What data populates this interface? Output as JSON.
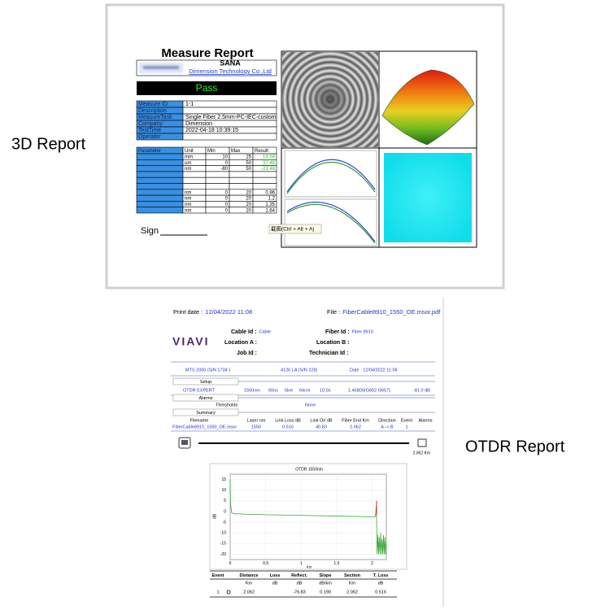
{
  "labels": {
    "report_3d": "3D Report",
    "report_otdr": "OTDR Report"
  },
  "report_3d": {
    "title": "Measure Report",
    "company_short": "SANA",
    "company": "Dimension Technology Co.,Ltd",
    "status": "Pass",
    "info": [
      {
        "label": "Measure ID",
        "value": "1-1"
      },
      {
        "label": "Description"
      },
      {
        "label": "MeasureTask",
        "value": "Single Fiber 2.5mm-PC-IEC-custom"
      },
      {
        "label": "Company",
        "value": "Dimension"
      },
      {
        "label": "TestTime",
        "value": "2022-04-18 10:39:15"
      },
      {
        "label": "Operator"
      }
    ],
    "params_header": [
      "Parameter",
      "Unit",
      "Min",
      "Max",
      "Result"
    ],
    "params_rows": [
      {
        "unit": "mm",
        "min": "10",
        "max": "25",
        "result": "19.59",
        "result_color": "#22c322"
      },
      {
        "unit": "um",
        "min": "0",
        "max": "50",
        "result": "37.48",
        "result_color": "#22c322"
      },
      {
        "unit": "nm",
        "min": "-80",
        "max": "50",
        "result": "-23.46",
        "result_color": "#22c322"
      },
      {},
      {},
      {},
      {
        "unit": "nm",
        "min": "0",
        "max": "20",
        "result": "0.96"
      },
      {
        "unit": "nm",
        "min": "0",
        "max": "20",
        "result": "1.2"
      },
      {
        "unit": "nm",
        "min": "0",
        "max": "20",
        "result": "1.35"
      },
      {
        "unit": "nm",
        "min": "0",
        "max": "20",
        "result": "1.64"
      }
    ],
    "sign": "Sign",
    "tooltip": "截图(Ctrl + Alt + A)"
  },
  "report_otdr": {
    "print_date_label": "Print date :",
    "print_date": "12/04/2022 11:08",
    "file_label": "File :",
    "file": "FiberCable8910_1550_OE.msor.pdf",
    "logo": "VIAVI",
    "fields": [
      {
        "label": "Cable Id :",
        "value": "Cable"
      },
      {
        "label": "Fiber Id :",
        "value": "Fiber 8910"
      },
      {
        "label": "Location A :"
      },
      {
        "label": "Location B :"
      },
      {
        "label": "Job Id :"
      },
      {
        "label": "Technician Id :"
      }
    ],
    "device": "MTS 2000 (S/N 1734 )",
    "module": "4126 LA (S/N 228)",
    "date": "Date : 12/04/2022 11:08",
    "setup": {
      "title": "Setup",
      "values": [
        "OTDR EXPERT",
        "1550nm",
        "60ns",
        "5km",
        "64cm",
        "10.0s",
        "1.46800(G652 G657)",
        "-81.0 dB"
      ]
    },
    "alarms": {
      "title": "Alarms",
      "label": "Thresholds",
      "value": "None"
    },
    "summary": {
      "title": "Summary",
      "header": [
        "Filename",
        "Laser nm",
        "Link Loss dB",
        "Link Orl dB",
        "Fiber End Km",
        "Direction",
        "Event",
        "Alarms"
      ],
      "row": [
        "FiberCable8910_1550_OE.msor",
        "1550",
        "0.516",
        "40.83",
        "2.062",
        "A -> B",
        "1"
      ]
    },
    "fiber_length": "2.062 Km",
    "chart": {
      "type": "line",
      "title": "OTDR 1550nm",
      "x_label": "Km",
      "y_label": "dB",
      "xlim": [
        0,
        2.2
      ],
      "ylim": [
        -22.5,
        17.5
      ],
      "xticks": [
        0,
        {
          "value": 0.5,
          "label": "0,5"
        },
        1,
        {
          "value": 1.5,
          "label": "1,5"
        },
        2
      ],
      "yticks": [
        15,
        10,
        5,
        0,
        -5,
        -10,
        -15,
        -20
      ],
      "grid": true,
      "x": [
        0,
        0.005,
        0.02,
        0.05,
        0.2,
        0.5,
        1,
        1.5,
        1.9,
        2.04,
        2.05,
        2.06,
        2.065,
        2.07,
        2.08,
        2.09,
        2.1,
        2.11,
        2.12,
        2.13,
        2.14,
        2.15,
        2.16,
        2.17,
        2.18,
        2.19,
        2.2
      ],
      "series": [
        {
          "color": "#3aa83a",
          "values": [
            15,
            4,
            -0.5,
            -1,
            -1.2,
            -1.5,
            -1.8,
            -2.1,
            -2.4,
            -2.5,
            -1,
            3,
            -10,
            -20,
            -11,
            -20,
            -12,
            -20,
            -10,
            -20,
            -13,
            -20,
            -11,
            -20,
            -12,
            -20,
            -14
          ]
        }
      ],
      "event_marker": {
        "x": 2.062,
        "color": "#d02020"
      }
    },
    "events": {
      "header": [
        "Event",
        "Distance",
        "Loss",
        "Reflect.",
        "Slope",
        "Section",
        "T. Loss"
      ],
      "units": [
        null,
        "Km",
        "dB",
        "dB",
        "dB/km",
        "Km",
        "dB"
      ],
      "rows": [
        [
          "1",
          "2.062",
          null,
          "-76.83",
          "0.190",
          "2.062",
          "0.516"
        ]
      ]
    }
  }
}
